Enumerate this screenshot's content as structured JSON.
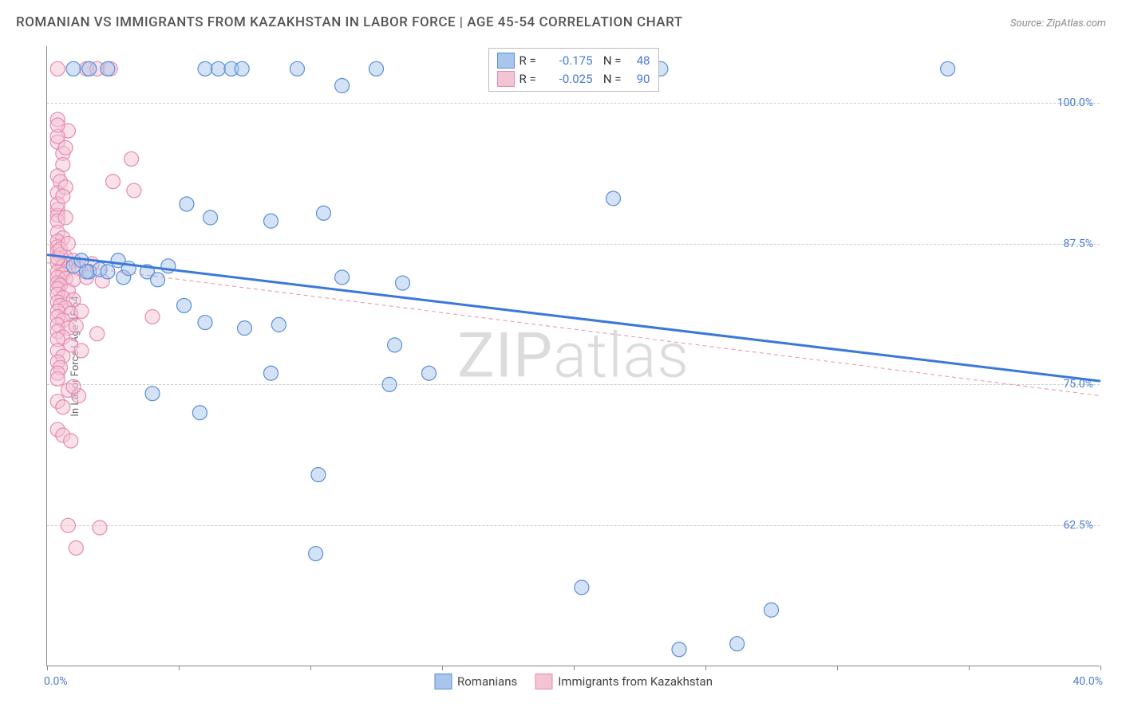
{
  "title": "ROMANIAN VS IMMIGRANTS FROM KAZAKHSTAN IN LABOR FORCE | AGE 45-54 CORRELATION CHART",
  "source": "Source: ZipAtlas.com",
  "y_axis_title": "In Labor Force | Age 45-54",
  "watermark": "ZIPatlas",
  "chart": {
    "type": "scatter",
    "xlim": [
      0,
      40
    ],
    "ylim": [
      50,
      105
    ],
    "x_ticks": [
      0,
      5,
      10,
      15,
      20,
      25,
      30,
      35,
      40
    ],
    "x_tick_labels": {
      "0": "0.0%",
      "40": "40.0%"
    },
    "y_gridlines": [
      62.5,
      75.0,
      87.5,
      100.0
    ],
    "y_tick_labels": [
      "62.5%",
      "75.0%",
      "87.5%",
      "100.0%"
    ],
    "background_color": "#ffffff",
    "grid_color": "#cccccc",
    "axis_color": "#888888",
    "tick_label_color": "#4a7bd0",
    "point_radius": 9,
    "point_opacity": 0.5,
    "series": [
      {
        "name": "Romanians",
        "color_fill": "#a8c5eb",
        "color_stroke": "#5a8fd6",
        "R": "-0.175",
        "N": "48",
        "trend": {
          "x1": 0,
          "y1": 86.5,
          "x2": 40,
          "y2": 75.3,
          "stroke": "#3b78d8",
          "width": 3,
          "dash": "none"
        },
        "points": [
          [
            1.0,
            103
          ],
          [
            1.6,
            103
          ],
          [
            2.3,
            103
          ],
          [
            6.0,
            103
          ],
          [
            6.5,
            103
          ],
          [
            7.0,
            103
          ],
          [
            7.4,
            103
          ],
          [
            9.5,
            103
          ],
          [
            12.5,
            103
          ],
          [
            21.3,
            103
          ],
          [
            23.3,
            103
          ],
          [
            34.2,
            103
          ],
          [
            11.2,
            101.5
          ],
          [
            1.0,
            85.5
          ],
          [
            1.3,
            86
          ],
          [
            1.6,
            85
          ],
          [
            2.0,
            85.2
          ],
          [
            2.3,
            85
          ],
          [
            2.7,
            86
          ],
          [
            2.9,
            84.5
          ],
          [
            3.1,
            85.3
          ],
          [
            3.8,
            85
          ],
          [
            4.2,
            84.3
          ],
          [
            4.6,
            85.5
          ],
          [
            5.3,
            91
          ],
          [
            6.2,
            89.8
          ],
          [
            8.5,
            89.5
          ],
          [
            10.5,
            90.2
          ],
          [
            11.2,
            84.5
          ],
          [
            13.5,
            84
          ],
          [
            13.2,
            78.5
          ],
          [
            21.5,
            91.5
          ],
          [
            5.2,
            82
          ],
          [
            6.0,
            80.5
          ],
          [
            7.5,
            80
          ],
          [
            8.8,
            80.3
          ],
          [
            8.5,
            76
          ],
          [
            4.0,
            74.2
          ],
          [
            5.8,
            72.5
          ],
          [
            13.0,
            75
          ],
          [
            14.5,
            76
          ],
          [
            10.3,
            67
          ],
          [
            10.2,
            60
          ],
          [
            20.3,
            57
          ],
          [
            1.5,
            85
          ],
          [
            24.0,
            51.5
          ],
          [
            26.2,
            52
          ],
          [
            27.5,
            55
          ]
        ]
      },
      {
        "name": "Immigrants from Kazakhstan",
        "color_fill": "#f3c4d4",
        "color_stroke": "#e68ab0",
        "R": "-0.025",
        "N": "90",
        "trend": {
          "x1": 0,
          "y1": 85.8,
          "x2": 40,
          "y2": 74.0,
          "stroke": "#e78fb2",
          "width": 1,
          "dash": "5,4"
        },
        "points": [
          [
            0.4,
            103
          ],
          [
            1.5,
            103
          ],
          [
            1.9,
            103
          ],
          [
            2.4,
            103
          ],
          [
            0.4,
            98.5
          ],
          [
            0.8,
            97.5
          ],
          [
            0.4,
            96.5
          ],
          [
            0.6,
            95.5
          ],
          [
            0.6,
            94.5
          ],
          [
            3.2,
            95
          ],
          [
            0.4,
            93.5
          ],
          [
            0.5,
            93
          ],
          [
            0.4,
            92
          ],
          [
            0.7,
            92.5
          ],
          [
            2.5,
            93
          ],
          [
            3.3,
            92.2
          ],
          [
            0.4,
            90.5
          ],
          [
            0.4,
            90
          ],
          [
            0.4,
            89.5
          ],
          [
            0.7,
            89.8
          ],
          [
            0.4,
            88.5
          ],
          [
            0.6,
            88
          ],
          [
            0.4,
            87.7
          ],
          [
            0.4,
            87.2
          ],
          [
            0.4,
            86.8
          ],
          [
            0.5,
            86.5
          ],
          [
            0.7,
            86.3
          ],
          [
            1.0,
            86
          ],
          [
            0.4,
            85.8
          ],
          [
            0.6,
            85.5
          ],
          [
            0.8,
            85.3
          ],
          [
            1.2,
            85.3
          ],
          [
            0.4,
            85
          ],
          [
            0.6,
            84.8
          ],
          [
            0.4,
            84.5
          ],
          [
            0.7,
            84.4
          ],
          [
            1.0,
            84.3
          ],
          [
            1.5,
            84.5
          ],
          [
            0.4,
            84
          ],
          [
            0.5,
            83.8
          ],
          [
            0.4,
            83.5
          ],
          [
            0.8,
            83.3
          ],
          [
            0.4,
            83
          ],
          [
            0.6,
            82.7
          ],
          [
            1.0,
            82.5
          ],
          [
            0.4,
            82.3
          ],
          [
            0.5,
            82
          ],
          [
            0.7,
            81.8
          ],
          [
            0.4,
            81.5
          ],
          [
            0.9,
            81.3
          ],
          [
            1.3,
            81.5
          ],
          [
            0.4,
            81
          ],
          [
            0.6,
            80.7
          ],
          [
            0.4,
            80.3
          ],
          [
            0.8,
            80
          ],
          [
            1.1,
            80.2
          ],
          [
            0.4,
            79.7
          ],
          [
            0.6,
            79.2
          ],
          [
            0.4,
            79
          ],
          [
            0.9,
            78.5
          ],
          [
            1.9,
            79.5
          ],
          [
            0.4,
            78
          ],
          [
            0.6,
            77.5
          ],
          [
            1.3,
            78
          ],
          [
            4.0,
            81
          ],
          [
            0.4,
            77
          ],
          [
            0.5,
            76.5
          ],
          [
            0.4,
            76
          ],
          [
            0.8,
            74.5
          ],
          [
            1.2,
            74
          ],
          [
            0.4,
            73.5
          ],
          [
            0.6,
            73
          ],
          [
            1.0,
            74.8
          ],
          [
            0.4,
            71
          ],
          [
            0.6,
            70.5
          ],
          [
            0.9,
            70
          ],
          [
            0.8,
            62.5
          ],
          [
            2.0,
            62.3
          ],
          [
            1.1,
            60.5
          ],
          [
            0.4,
            86.2
          ],
          [
            0.5,
            87
          ],
          [
            0.8,
            87.5
          ],
          [
            0.4,
            91
          ],
          [
            0.6,
            91.7
          ],
          [
            0.4,
            97
          ],
          [
            0.7,
            96
          ],
          [
            0.4,
            98
          ],
          [
            1.7,
            85.7
          ],
          [
            2.1,
            84.2
          ],
          [
            0.4,
            75.5
          ]
        ]
      }
    ]
  },
  "legend_bottom": [
    {
      "label": "Romanians",
      "fill": "#a8c5eb",
      "stroke": "#5a8fd6"
    },
    {
      "label": "Immigrants from Kazakhstan",
      "fill": "#f3c4d4",
      "stroke": "#e68ab0"
    }
  ]
}
